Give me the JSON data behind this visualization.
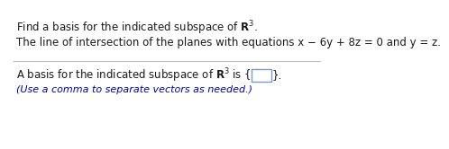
{
  "line1_prefix": "Find a basis for the indicated subspace of ",
  "line1_suffix": ".",
  "line2": "The line of intersection of the planes with equations x − 6y + 8z = 0 and y = z.",
  "ans_prefix": "A basis for the indicated subspace of ",
  "ans_mid": " is {",
  "ans_suffix": "}.",
  "hint": "(Use a comma to separate vectors as needed.)",
  "bg_color": "#ffffff",
  "text_color": "#1a1a1a",
  "hint_color": "#0000bb",
  "divider_color": "#bbbbbb",
  "box_edge_color": "#7799cc",
  "font_size": 8.5,
  "hint_font_size": 8.0
}
